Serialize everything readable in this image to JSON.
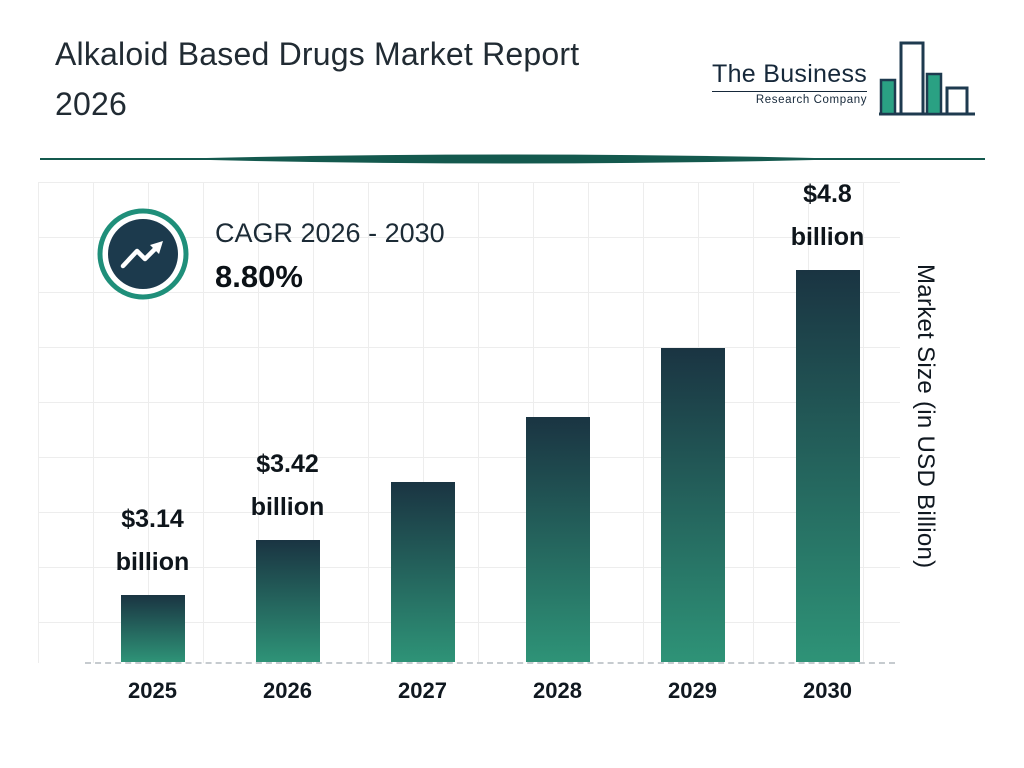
{
  "header": {
    "title": "Alkaloid Based Drugs Market Report 2026",
    "logo": {
      "line1": "The Business",
      "line2": "Research Company"
    }
  },
  "cagr": {
    "label": "CAGR 2026 - 2030",
    "value": "8.80%"
  },
  "colors": {
    "bar_top": "#1a3442",
    "bar_bottom": "#2e9377",
    "accent_teal": "#1f8f7a",
    "badge_navy": "#1c3a4d",
    "divider": "#14594e",
    "logo_green": "#2aa183"
  },
  "chart_data": {
    "type": "bar",
    "title": "Alkaloid Based Drugs Market Report 2026",
    "categories": [
      "2025",
      "2026",
      "2027",
      "2028",
      "2029",
      "2030"
    ],
    "values": [
      3.14,
      3.42,
      3.72,
      4.05,
      4.4,
      4.8
    ],
    "value_labels": [
      "$3.14 billion",
      "$3.42 billion",
      null,
      null,
      null,
      "$4.8 billion"
    ],
    "unit": "USD Billion",
    "cagr_2026_2030": "8.80%",
    "xlabel": "",
    "ylabel": "Market Size (in USD Billion)",
    "ylim": [
      2.8,
      4.8
    ],
    "grid": true,
    "legend": false
  }
}
